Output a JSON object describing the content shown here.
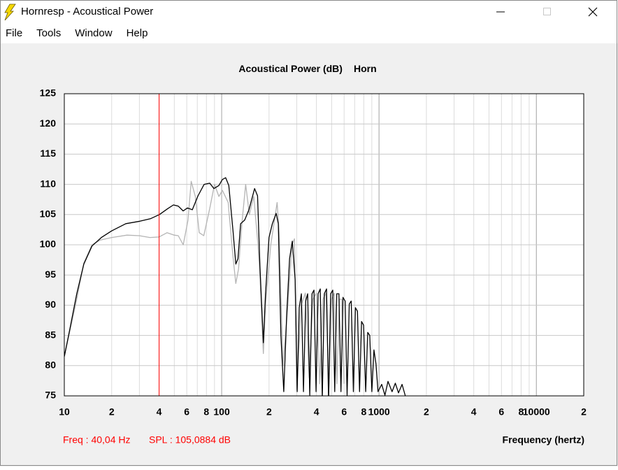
{
  "window": {
    "title": "Hornresp - Acoustical Power",
    "menu": [
      "File",
      "Tools",
      "Window",
      "Help"
    ]
  },
  "chart_data": {
    "type": "line",
    "title": "Acoustical Power (dB)",
    "subtitle": "Horn",
    "x_label": "Frequency (hertz)",
    "log_x": true,
    "grid": true,
    "xlim": [
      10,
      20000
    ],
    "ylim": [
      75,
      125
    ],
    "xticks": [
      {
        "value": 10,
        "label": "10"
      },
      {
        "value": 20,
        "label": "2"
      },
      {
        "value": 40,
        "label": "4"
      },
      {
        "value": 60,
        "label": "6"
      },
      {
        "value": 80,
        "label": "8"
      },
      {
        "value": 100,
        "label": "100"
      },
      {
        "value": 200,
        "label": "2"
      },
      {
        "value": 400,
        "label": "4"
      },
      {
        "value": 600,
        "label": "6"
      },
      {
        "value": 800,
        "label": "8"
      },
      {
        "value": 1000,
        "label": "1000"
      },
      {
        "value": 2000,
        "label": "2"
      },
      {
        "value": 4000,
        "label": "4"
      },
      {
        "value": 6000,
        "label": "6"
      },
      {
        "value": 8000,
        "label": "8"
      },
      {
        "value": 10000,
        "label": "10000"
      },
      {
        "value": 20000,
        "label": "2"
      }
    ],
    "x_grid_minor": [
      30,
      50,
      70,
      90,
      300,
      500,
      700,
      900,
      3000,
      5000,
      7000,
      9000
    ],
    "x_grid_major": [
      100,
      1000,
      10000
    ],
    "yticks": [
      75,
      80,
      85,
      90,
      95,
      100,
      105,
      110,
      115,
      120,
      125
    ],
    "cursor": {
      "x": 40.04,
      "color": "#ff0000",
      "label": "Freq : 40,04 Hz",
      "spl_label": "SPL : 105,0884 dB"
    },
    "series": [
      {
        "color": "#b4b4b4",
        "x": [
          10,
          12,
          13.3,
          15,
          17,
          20,
          25,
          30,
          35,
          40,
          45,
          50,
          53,
          57,
          61,
          64,
          68,
          72,
          77,
          84,
          90,
          96,
          101,
          110,
          118,
          123,
          128,
          135,
          142,
          150,
          160,
          170,
          175,
          184,
          190,
          205,
          225,
          232,
          245,
          260,
          280,
          290,
          300,
          320,
          340,
          360,
          380,
          400,
          420,
          440,
          460,
          480,
          500,
          520,
          540,
          560,
          580,
          600
        ],
        "values": [
          81.5,
          91,
          97,
          100,
          100.8,
          101.2,
          101.6,
          101.5,
          101.2,
          101.3,
          102,
          101.6,
          101.5,
          100,
          104,
          110.5,
          108,
          102,
          101.5,
          106,
          110,
          108,
          109,
          107,
          98,
          93.6,
          96,
          104,
          110,
          105,
          108,
          100,
          95,
          82,
          90,
          100,
          107,
          102,
          80,
          88,
          100,
          101,
          76,
          90,
          92,
          78,
          91,
          92,
          77,
          91,
          92,
          76,
          91,
          92,
          77,
          91,
          91,
          77
        ]
      },
      {
        "color": "#000000",
        "x": [
          10,
          10.85,
          12,
          13.3,
          15,
          17.2,
          20,
          24.6,
          30.2,
          35.2,
          40.2,
          45.5,
          49.4,
          53,
          56.9,
          60.6,
          65.1,
          70.7,
          77.4,
          84,
          89.3,
          95.9,
          101,
          106,
          111,
          118,
          123,
          127,
          132,
          140,
          149,
          162,
          169,
          175,
          184,
          190,
          200,
          210,
          222,
          229,
          238,
          248,
          259,
          270,
          281,
          293,
          302,
          311,
          321,
          331,
          342,
          352,
          363,
          375,
          386,
          398,
          410,
          423,
          436,
          449,
          464,
          478,
          493,
          508,
          523,
          539,
          556,
          573,
          590,
          609,
          627,
          647,
          666,
          687,
          708,
          729,
          752,
          775,
          798,
          823,
          848,
          873,
          900,
          928,
          956,
          985,
          1040,
          1090,
          1140,
          1210,
          1270,
          1330,
          1400,
          1470
        ],
        "values": [
          81.5,
          86.1,
          91.9,
          96.8,
          99.8,
          101.2,
          102.3,
          103.5,
          103.9,
          104.3,
          105,
          106,
          106.6,
          106.4,
          105.6,
          106.1,
          105.8,
          108.1,
          110,
          110.2,
          109.3,
          109.8,
          110.8,
          111.1,
          109.8,
          102.3,
          96.8,
          97.7,
          103.5,
          104.1,
          105.8,
          109.3,
          108.1,
          96.5,
          83.8,
          91.9,
          101.2,
          103.5,
          105.2,
          103.5,
          85,
          75.7,
          88.4,
          97.7,
          100.6,
          94.2,
          75.7,
          89.6,
          91.9,
          75.7,
          90.7,
          91.9,
          75.1,
          91.9,
          92.5,
          75.7,
          91.9,
          92.7,
          74.5,
          91.9,
          92.7,
          74,
          91.9,
          92.5,
          75.7,
          91.9,
          91.9,
          75.7,
          91.3,
          90.7,
          75.1,
          90.2,
          90.7,
          75.7,
          89.6,
          89,
          75.7,
          87.3,
          86.7,
          75.7,
          85.5,
          85,
          75.7,
          82.6,
          80.3,
          75.7,
          76.9,
          75.1,
          77.4,
          75.7,
          77.1,
          75.5,
          76.9,
          75
        ]
      }
    ]
  }
}
